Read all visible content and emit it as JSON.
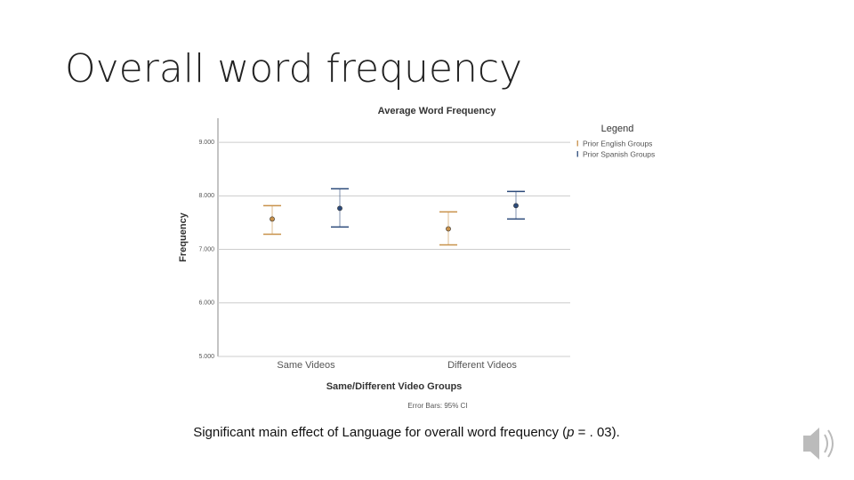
{
  "slide": {
    "title": "Overall word frequency",
    "caption": {
      "text": "Significant main effect of Language for overall word frequency (",
      "italic": "p",
      "end": " = . 03)."
    }
  },
  "chart_data": {
    "type": "errorbar",
    "title": "Average Word Frequency",
    "x_label": "Same/Different Video Groups",
    "y_label": "Frequency",
    "note": "Error Bars: 95% CI",
    "legend_title": "Legend",
    "legend": "right",
    "categories": [
      "Same Videos",
      "Different Videos"
    ],
    "series": [
      {
        "name": "Prior English Groups",
        "color": "#c8914a",
        "values": [
          7.567,
          7.383
        ],
        "lower": [
          7.283,
          7.083
        ],
        "upper": [
          7.817,
          7.7
        ]
      },
      {
        "name": "Prior Spanish Groups",
        "color": "#2c4a7a",
        "values": [
          7.767,
          7.817
        ],
        "lower": [
          7.417,
          7.567
        ],
        "upper": [
          8.133,
          8.083
        ]
      }
    ],
    "ylim": [
      5,
      9.45
    ],
    "yticks": [
      {
        "value": 5,
        "label": "5.000"
      },
      {
        "value": 6,
        "label": "6.000"
      },
      {
        "value": 7,
        "label": "7.000"
      },
      {
        "value": 8,
        "label": "8.000"
      },
      {
        "value": 9,
        "label": "9.000"
      }
    ],
    "grid": true
  }
}
